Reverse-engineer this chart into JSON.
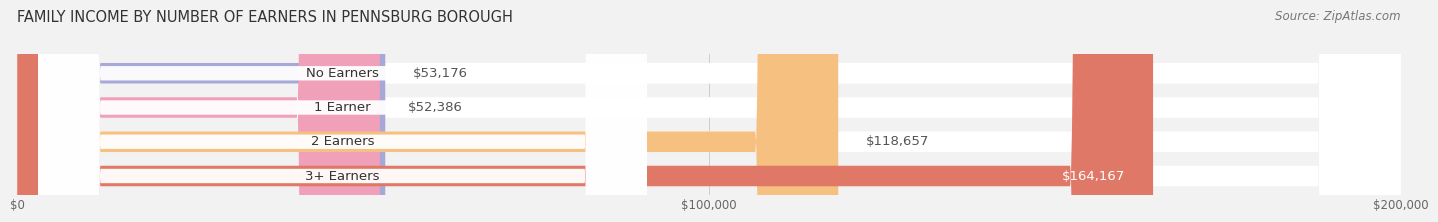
{
  "title": "FAMILY INCOME BY NUMBER OF EARNERS IN PENNSBURG BOROUGH",
  "source": "Source: ZipAtlas.com",
  "categories": [
    "No Earners",
    "1 Earner",
    "2 Earners",
    "3+ Earners"
  ],
  "values": [
    53176,
    52386,
    118657,
    164167
  ],
  "bar_colors": [
    "#a8a8d8",
    "#f0a0b8",
    "#f5c080",
    "#e07868"
  ],
  "value_labels": [
    "$53,176",
    "$52,386",
    "$118,657",
    "$164,167"
  ],
  "xmax": 200000,
  "xticks": [
    0,
    100000,
    200000
  ],
  "xtick_labels": [
    "$0",
    "$100,000",
    "$200,000"
  ],
  "background_color": "#f2f2f2",
  "title_fontsize": 10.5,
  "source_fontsize": 8.5,
  "label_fontsize": 9.5,
  "value_fontsize": 9.5
}
